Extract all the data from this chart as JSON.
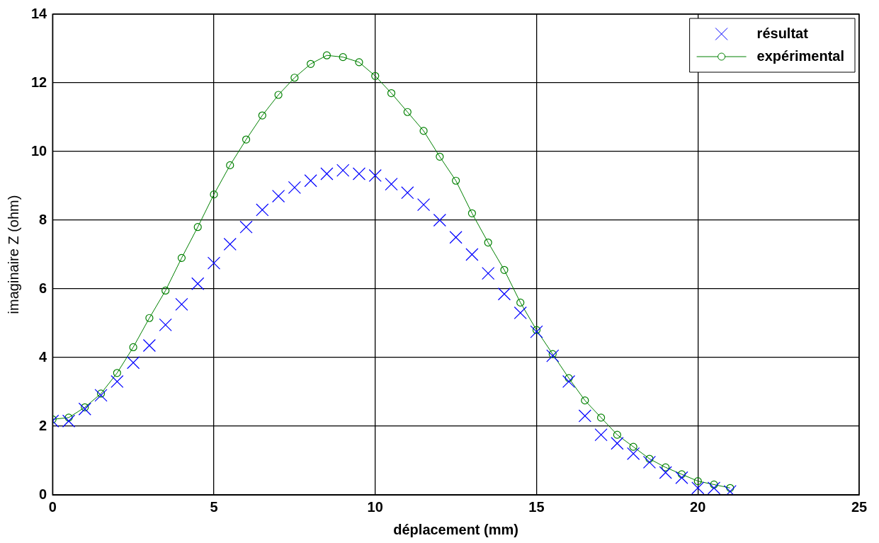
{
  "chart_data": {
    "type": "line",
    "xlabel": "déplacement (mm)",
    "ylabel": "imaginaire Z (ohm)",
    "x": [
      0,
      0.5,
      1,
      1.5,
      2,
      2.5,
      3,
      3.5,
      4,
      4.5,
      5,
      5.5,
      6,
      6.5,
      7,
      7.5,
      8,
      8.5,
      9,
      9.5,
      10,
      10.5,
      11,
      11.5,
      12,
      12.5,
      13,
      13.5,
      14,
      14.5,
      15,
      15.5,
      16,
      16.5,
      17,
      17.5,
      18,
      18.5,
      19,
      19.5,
      20,
      20.5,
      21
    ],
    "series": [
      {
        "name": "résultat",
        "type": "scatter",
        "marker": "cross",
        "color": "#0000ff",
        "values": [
          2.15,
          2.15,
          2.5,
          2.9,
          3.3,
          3.85,
          4.35,
          4.95,
          5.55,
          6.15,
          6.75,
          7.3,
          7.8,
          8.3,
          8.7,
          8.95,
          9.15,
          9.35,
          9.45,
          9.35,
          9.3,
          9.05,
          8.8,
          8.45,
          8.0,
          7.5,
          7.0,
          6.45,
          5.85,
          5.3,
          4.75,
          4.05,
          3.3,
          2.3,
          1.75,
          1.5,
          1.2,
          0.95,
          0.65,
          0.5,
          0.2,
          0.2,
          0.1
        ]
      },
      {
        "name": "expérimental",
        "marker": "circle",
        "color": "#008000",
        "values": [
          2.2,
          2.25,
          2.55,
          2.95,
          3.55,
          4.3,
          5.15,
          5.95,
          6.9,
          7.8,
          8.75,
          9.6,
          10.35,
          11.05,
          11.65,
          12.15,
          12.55,
          12.8,
          12.75,
          12.6,
          12.2,
          11.7,
          11.15,
          10.6,
          9.85,
          9.15,
          8.2,
          7.35,
          6.55,
          5.6,
          4.8,
          4.1,
          3.4,
          2.75,
          2.25,
          1.75,
          1.4,
          1.05,
          0.8,
          0.6,
          0.4,
          0.3,
          0.2
        ]
      }
    ],
    "xlim": [
      0,
      25
    ],
    "xticks": [
      0,
      5,
      10,
      15,
      20,
      25
    ],
    "ylim": [
      0,
      14
    ],
    "yticks": [
      0,
      2,
      4,
      6,
      8,
      10,
      12,
      14
    ],
    "grid": true,
    "legend": "top right"
  }
}
